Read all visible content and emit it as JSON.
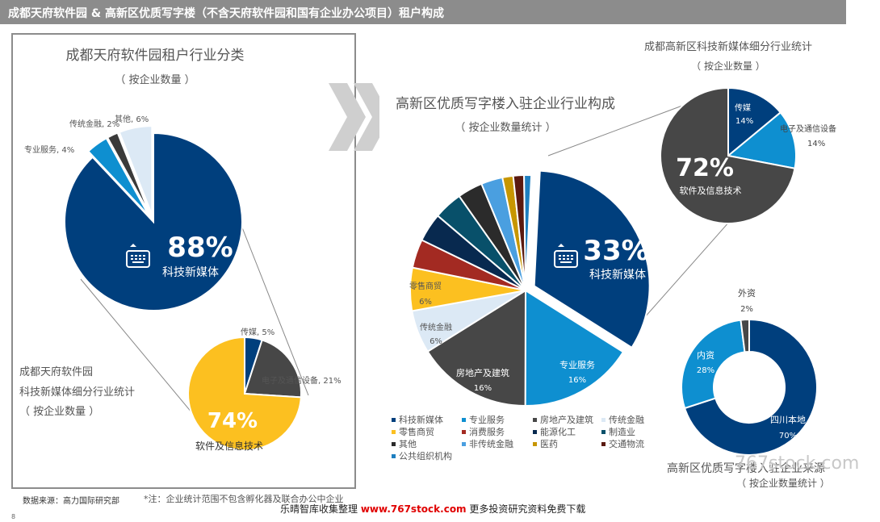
{
  "header": {
    "title": "成都天府软件园 & 高新区优质写字楼（不含天府软件园和国有企业办公项目）租户构成"
  },
  "titles": {
    "left_title": "成都天府软件园租户行业分类",
    "left_sub": "（ 按企业数量 ）",
    "left_sub_title1": "成都天府软件园",
    "left_sub_title2": "科技新媒体细分行业统计",
    "left_sub_title3": "（ 按企业数量 ）",
    "center_title": "高新区优质写字楼入驻企业行业构成",
    "center_sub": "（ 按企业数量统计 ）",
    "tr_title": "成都高新区科技新媒体细分行业统计",
    "tr_sub": "（ 按企业数量 ）",
    "br_title": "高新区优质写字楼入驻企业来源",
    "br_sub": "（ 按企业数量统计 ）"
  },
  "chart_data": [
    {
      "type": "pie",
      "title": "成都天府软件园租户行业分类",
      "slices": [
        {
          "label": "科技新媒体",
          "value": 88,
          "display": "88%",
          "color": "#003f7d"
        },
        {
          "label": "专业服务",
          "value": 4,
          "display": "专业服务, 4%",
          "color": "#0e8fd0"
        },
        {
          "label": "传统金融",
          "value": 2,
          "display": "传统金融, 2%",
          "color": "#3a3a3a"
        },
        {
          "label": "其他",
          "value": 6,
          "display": "其他, 6%",
          "color": "#dce9f5"
        }
      ]
    },
    {
      "type": "pie",
      "title": "成都天府软件园 科技新媒体细分行业统计",
      "slices": [
        {
          "label": "传媒",
          "value": 5,
          "display": "传媒, 5%",
          "color": "#003f7d"
        },
        {
          "label": "电子及通信设备",
          "value": 21,
          "display": "电子及通信设备, 21%",
          "color": "#474747"
        },
        {
          "label": "软件及信息技术",
          "value": 74,
          "display": "74%",
          "color": "#fcc020"
        }
      ]
    },
    {
      "type": "pie",
      "title": "高新区优质写字楼入驻企业行业构成",
      "slices": [
        {
          "label": "科技新媒体",
          "value": 33,
          "display": "33%",
          "color": "#003f7d"
        },
        {
          "label": "专业服务",
          "value": 16,
          "display": "16%",
          "color": "#0e8fd0"
        },
        {
          "label": "房地产及建筑",
          "value": 16,
          "display": "16%",
          "color": "#474747"
        },
        {
          "label": "传统金融",
          "value": 6,
          "display": "6%",
          "color": "#dce9f5"
        },
        {
          "label": "零售商贸",
          "value": 6,
          "display": "6%",
          "color": "#fcc020"
        },
        {
          "label": "消费服务",
          "value": 4,
          "display": "",
          "color": "#a32a22"
        },
        {
          "label": "能源化工",
          "value": 4,
          "display": "",
          "color": "#08294f"
        },
        {
          "label": "制造业",
          "value": 4,
          "display": "",
          "color": "#08506a"
        },
        {
          "label": "其他",
          "value": 3.5,
          "display": "",
          "color": "#2b2b2b"
        },
        {
          "label": "非传统金融",
          "value": 3,
          "display": "",
          "color": "#4a9fe0"
        },
        {
          "label": "医药",
          "value": 1.5,
          "display": "",
          "color": "#c79600"
        },
        {
          "label": "交通物流",
          "value": 1.5,
          "display": "",
          "color": "#5a1a10"
        },
        {
          "label": "公共组织机构",
          "value": 1,
          "display": "",
          "color": "#1e7fc0"
        }
      ]
    },
    {
      "type": "pie",
      "title": "成都高新区科技新媒体细分行业统计",
      "slices": [
        {
          "label": "传媒",
          "value": 14,
          "display": "14%",
          "color": "#003f7d"
        },
        {
          "label": "电子及通信设备",
          "value": 14,
          "display": "14%",
          "color": "#0e8fd0"
        },
        {
          "label": "软件及信息技术",
          "value": 72,
          "display": "72%",
          "color": "#474747"
        }
      ]
    },
    {
      "type": "pie",
      "title": "高新区优质写字楼入驻企业来源",
      "slices": [
        {
          "label": "四川本地",
          "value": 70,
          "display": "70%",
          "color": "#003f7d"
        },
        {
          "label": "内资",
          "value": 28,
          "display": "28%",
          "color": "#0e8fd0"
        },
        {
          "label": "外资",
          "value": 2,
          "display": "2%",
          "color": "#474747"
        }
      ]
    }
  ],
  "legend": [
    {
      "label": "科技新媒体",
      "color": "#003f7d"
    },
    {
      "label": "专业服务",
      "color": "#0e8fd0"
    },
    {
      "label": "房地产及建筑",
      "color": "#474747"
    },
    {
      "label": "传统金融",
      "color": "#dce9f5"
    },
    {
      "label": "零售商贸",
      "color": "#fcc020"
    },
    {
      "label": "消费服务",
      "color": "#a32a22"
    },
    {
      "label": "能源化工",
      "color": "#08294f"
    },
    {
      "label": "制造业",
      "color": "#08506a"
    },
    {
      "label": "其他",
      "color": "#2b2b2b"
    },
    {
      "label": "非传统金融",
      "color": "#4a9fe0"
    },
    {
      "label": "医药",
      "color": "#c79600"
    },
    {
      "label": "交通物流",
      "color": "#5a1a10"
    },
    {
      "label": "公共组织机构",
      "color": "#1e7fc0"
    }
  ],
  "footer": {
    "source": "数据来源：高力国际研究部",
    "note": "*注：企业统计范围不包含孵化器及联合办公中企业",
    "watermark_prefix": "乐晴智库收集整理 ",
    "watermark_url": "www.767stock.com",
    "watermark_suffix": " 更多投资研究资料免费下载",
    "watermark_site": "767stock.com",
    "page": "8"
  }
}
